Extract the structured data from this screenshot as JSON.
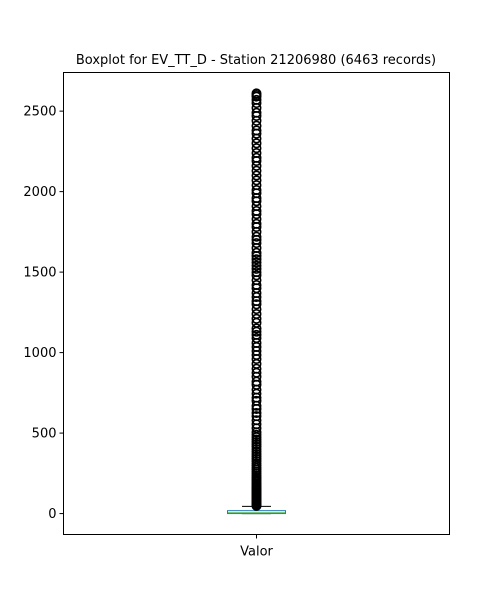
{
  "chart_data": {
    "type": "boxplot",
    "title": "Boxplot for EV_TT_D - Station 21206980 (6463 records)",
    "xlabel": "",
    "ylabel": "",
    "categories": [
      "Valor"
    ],
    "ylim": [
      -130,
      2740
    ],
    "yticks": [
      0,
      500,
      1000,
      1500,
      2000,
      2500
    ],
    "grid": false,
    "legend": "none",
    "colors": {
      "box": "#1f77b4",
      "median": "#2ca02c",
      "whisker": "#000000",
      "flier": "#000000"
    },
    "boxes": [
      {
        "label": "Valor",
        "whisker_low": 0,
        "q1": 0,
        "median": 3,
        "q3": 18,
        "whisker_high": 45,
        "outliers": [
          48,
          52,
          56,
          60,
          64,
          68,
          72,
          76,
          80,
          84,
          88,
          92,
          96,
          100,
          105,
          110,
          115,
          120,
          125,
          130,
          136,
          142,
          148,
          155,
          162,
          170,
          178,
          186,
          195,
          205,
          215,
          225,
          236,
          248,
          260,
          272,
          285,
          298,
          310,
          325,
          340,
          355,
          370,
          385,
          400,
          415,
          430,
          445,
          460,
          475,
          490,
          505,
          530,
          555,
          580,
          605,
          625,
          650,
          670,
          700,
          720,
          745,
          770,
          800,
          820,
          850,
          875,
          900,
          930,
          960,
          985,
          1010,
          1035,
          1060,
          1090,
          1110,
          1130,
          1150,
          1185,
          1210,
          1240,
          1270,
          1300,
          1320,
          1345,
          1370,
          1400,
          1420,
          1450,
          1480,
          1500,
          1520,
          1540,
          1560,
          1580,
          1600,
          1620,
          1650,
          1680,
          1700,
          1720,
          1750,
          1780,
          1800,
          1830,
          1860,
          1880,
          1910,
          1940,
          1960,
          1990,
          2010,
          2040,
          2070,
          2100,
          2130,
          2160,
          2190,
          2210,
          2240,
          2270,
          2300,
          2330,
          2360,
          2380,
          2410,
          2440,
          2470,
          2490,
          2520,
          2550,
          2570,
          2590,
          2600,
          2610
        ]
      }
    ]
  }
}
